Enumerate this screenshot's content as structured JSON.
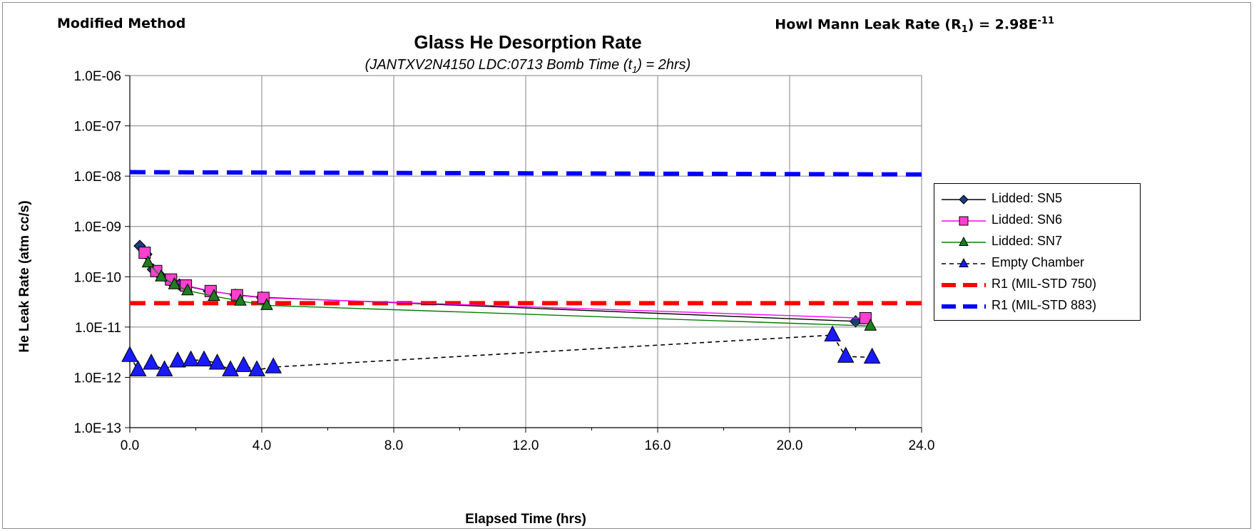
{
  "header": {
    "left_label": "Modified Method",
    "right_label_prefix": "Howl Mann Leak Rate (R",
    "right_label_sub": "1",
    "right_label_mid": ") = 2.98E",
    "right_label_sup": "-11"
  },
  "chart_data": {
    "type": "line",
    "title": "Glass He Desorption Rate",
    "subtitle_prefix": "(JANTXV2N4150 LDC:0713  Bomb Time (t",
    "subtitle_sub": "1",
    "subtitle_suffix": ") = 2hrs)",
    "xlabel": "Elapsed Time (hrs)",
    "ylabel": "He Leak Rate (atm cc/s)",
    "xlim": [
      0,
      24
    ],
    "ylim": [
      1e-13,
      1e-06
    ],
    "y_scale": "log",
    "x_ticks": [
      "0.0",
      "4.0",
      "8.0",
      "12.0",
      "16.0",
      "20.0",
      "24.0"
    ],
    "y_ticks": [
      "1.0E-13",
      "1.0E-12",
      "1.0E-11",
      "1.0E-10",
      "1.0E-09",
      "1.0E-08",
      "1.0E-07",
      "1.0E-06"
    ],
    "grid": true,
    "legend_position": "right",
    "series": [
      {
        "name": "Lidded: SN5",
        "color": "#000000",
        "marker_fill": "#1f3a7a",
        "marker": "diamond",
        "line": "solid",
        "x": [
          0.3,
          0.5,
          0.7,
          0.9,
          1.2,
          1.5,
          2.4,
          3.2,
          4.0,
          22.0
        ],
        "y": [
          4.1e-10,
          2.8e-10,
          1.4e-10,
          1.1e-10,
          8.5e-11,
          7e-11,
          5.2e-11,
          4.4e-11,
          3.9e-11,
          1.3e-11
        ]
      },
      {
        "name": "Lidded: SN6",
        "color": "#ff00ff",
        "marker_fill": "#ff3fd0",
        "marker": "square",
        "line": "solid",
        "x": [
          0.45,
          0.8,
          1.25,
          1.7,
          2.45,
          3.25,
          4.05,
          22.3
        ],
        "y": [
          3e-10,
          1.3e-10,
          8.8e-11,
          6.7e-11,
          5.2e-11,
          4.3e-11,
          3.8e-11,
          1.5e-11
        ]
      },
      {
        "name": "Lidded: SN7",
        "color": "#008000",
        "marker_fill": "#1e7d1e",
        "marker": "triangle",
        "line": "solid",
        "x": [
          0.55,
          0.95,
          1.35,
          1.75,
          2.55,
          3.35,
          4.15,
          22.45
        ],
        "y": [
          1.9e-10,
          1e-10,
          7e-11,
          5.3e-11,
          4.1e-11,
          3.3e-11,
          2.7e-11,
          1.05e-11
        ]
      },
      {
        "name": "Empty Chamber",
        "color": "#000000",
        "marker_fill": "#1a1aff",
        "marker": "triangle",
        "line": "dashed",
        "x": [
          0.0,
          0.25,
          0.65,
          1.05,
          1.45,
          1.85,
          2.25,
          2.65,
          3.05,
          3.45,
          3.85,
          4.35,
          21.3,
          21.7,
          22.5
        ],
        "y": [
          2.7e-12,
          1.4e-12,
          1.9e-12,
          1.4e-12,
          2.1e-12,
          2.2e-12,
          2.2e-12,
          1.9e-12,
          1.4e-12,
          1.7e-12,
          1.4e-12,
          1.6e-12,
          6.9e-12,
          2.6e-12,
          2.5e-12
        ]
      },
      {
        "name": "R1 (MIL-STD 750)",
        "color": "#ff0000",
        "marker": "none",
        "line": "thick-dashed",
        "x": [
          0,
          24
        ],
        "y": [
          2.98e-11,
          2.98e-11
        ]
      },
      {
        "name": "R1 (MIL-STD 883)",
        "color": "#0000ff",
        "marker": "none",
        "line": "thick-dashed",
        "x": [
          0,
          24
        ],
        "y": [
          1.2e-08,
          1.08e-08
        ]
      }
    ]
  }
}
